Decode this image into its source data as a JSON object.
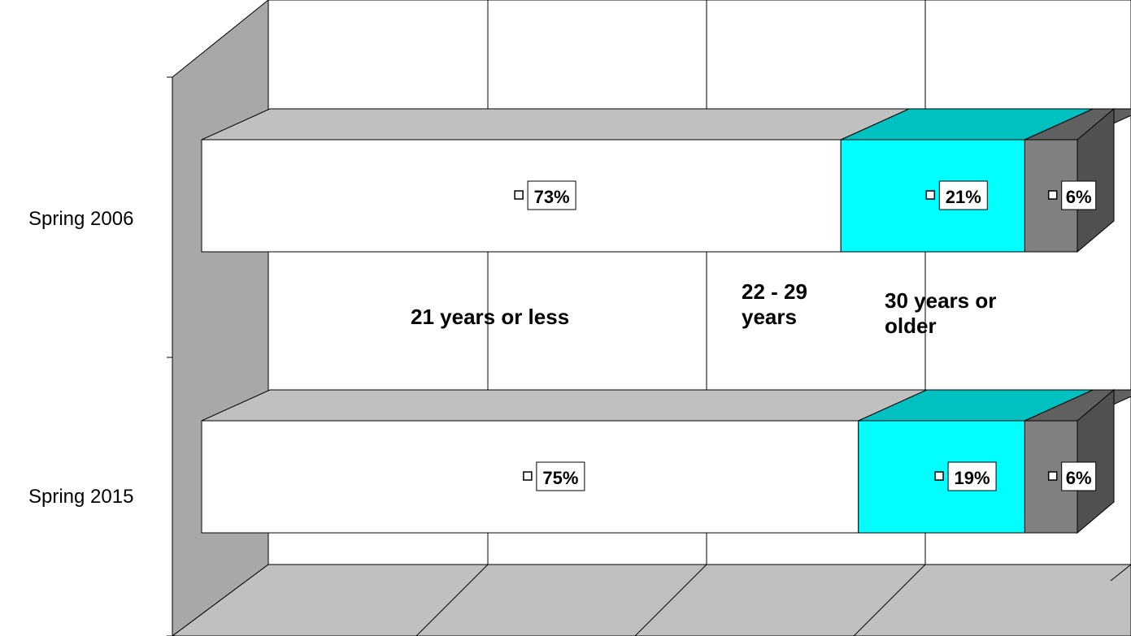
{
  "chart_data": {
    "type": "bar",
    "orientation": "horizontal",
    "stacked": true,
    "percent": true,
    "three_d": true,
    "categories": [
      "Spring 2006",
      "Spring 2015"
    ],
    "series": [
      {
        "name": "21 years or less",
        "values": [
          73,
          75
        ],
        "labels": [
          "73%",
          "75%"
        ],
        "color": "#ffffff",
        "top_color": "#c0c0c0",
        "side_color": "#b0b0b0"
      },
      {
        "name": "22 - 29 years",
        "values": [
          21,
          19
        ],
        "labels": [
          "21%",
          "19%"
        ],
        "color": "#00ffff",
        "top_color": "#00c0c0",
        "side_color": "#00a8a8"
      },
      {
        "name": "30 years or older",
        "values": [
          6,
          6
        ],
        "labels": [
          "6%",
          "6%"
        ],
        "color": "#808080",
        "top_color": "#606060",
        "side_color": "#505050"
      }
    ],
    "xlim": [
      0,
      100
    ],
    "grid": true,
    "legend_placement": "center"
  },
  "colors": {
    "wall": "#ffffff",
    "side_wall": "#a8a8a8",
    "floor": "#c0c0c0",
    "outline": "#000000"
  }
}
